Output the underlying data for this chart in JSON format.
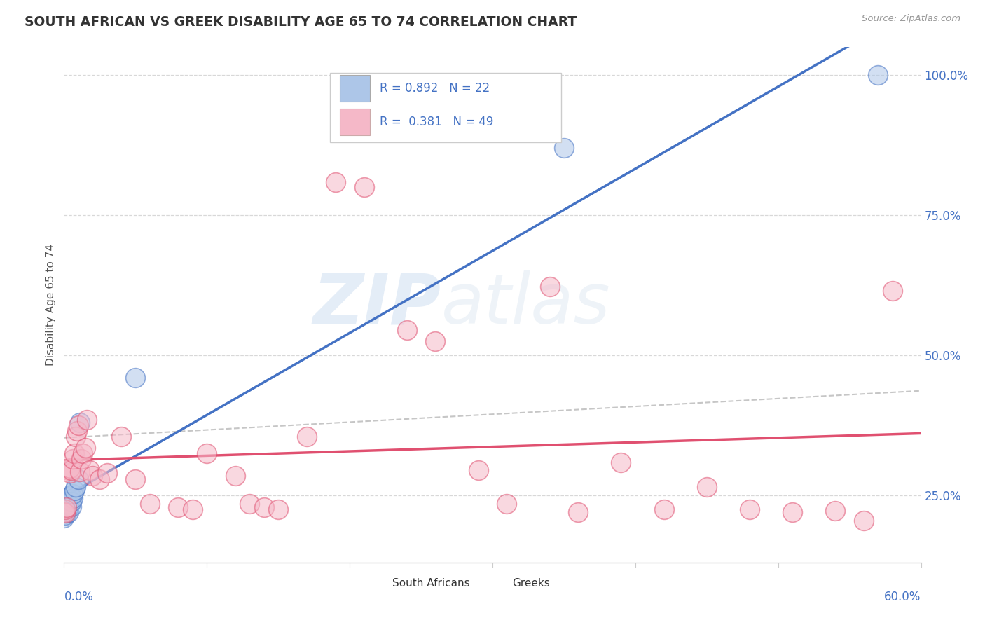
{
  "title": "SOUTH AFRICAN VS GREEK DISABILITY AGE 65 TO 74 CORRELATION CHART",
  "source": "Source: ZipAtlas.com",
  "ylabel": "Disability Age 65 to 74",
  "south_african_color": "#adc6e8",
  "greek_color": "#f5b8c8",
  "sa_line_color": "#4472c4",
  "greek_line_color": "#e05070",
  "greek_dash_color": "#b8b8b8",
  "xlim": [
    0.0,
    0.6
  ],
  "ylim": [
    0.13,
    1.05
  ],
  "sa_x": [
    0.0,
    0.001,
    0.001,
    0.002,
    0.002,
    0.002,
    0.003,
    0.003,
    0.003,
    0.004,
    0.004,
    0.005,
    0.005,
    0.006,
    0.006,
    0.007,
    0.008,
    0.01,
    0.011,
    0.05,
    0.35,
    0.57
  ],
  "sa_y": [
    0.21,
    0.215,
    0.22,
    0.218,
    0.225,
    0.232,
    0.22,
    0.228,
    0.235,
    0.242,
    0.248,
    0.23,
    0.238,
    0.245,
    0.252,
    0.258,
    0.265,
    0.278,
    0.38,
    0.46,
    0.87,
    1.0
  ],
  "gr_x": [
    0.0,
    0.001,
    0.001,
    0.002,
    0.003,
    0.004,
    0.004,
    0.005,
    0.006,
    0.007,
    0.008,
    0.009,
    0.01,
    0.011,
    0.012,
    0.013,
    0.015,
    0.016,
    0.018,
    0.02,
    0.025,
    0.03,
    0.04,
    0.05,
    0.06,
    0.08,
    0.09,
    0.1,
    0.12,
    0.13,
    0.14,
    0.15,
    0.17,
    0.19,
    0.21,
    0.24,
    0.26,
    0.29,
    0.31,
    0.34,
    0.36,
    0.39,
    0.42,
    0.45,
    0.48,
    0.51,
    0.54,
    0.56,
    0.58
  ],
  "gr_y": [
    0.22,
    0.218,
    0.225,
    0.228,
    0.295,
    0.29,
    0.298,
    0.295,
    0.315,
    0.325,
    0.355,
    0.365,
    0.375,
    0.292,
    0.315,
    0.325,
    0.335,
    0.385,
    0.295,
    0.285,
    0.278,
    0.29,
    0.355,
    0.278,
    0.235,
    0.228,
    0.225,
    0.325,
    0.285,
    0.235,
    0.228,
    0.225,
    0.355,
    0.808,
    0.8,
    0.545,
    0.525,
    0.295,
    0.235,
    0.622,
    0.22,
    0.308,
    0.225,
    0.265,
    0.225,
    0.22,
    0.222,
    0.205,
    0.615
  ],
  "background_color": "#ffffff",
  "grid_color": "#d8d8d8",
  "ytick_values": [
    0.25,
    0.5,
    0.75,
    1.0
  ],
  "xtick_values": [
    0.0,
    0.1,
    0.2,
    0.3,
    0.4,
    0.5,
    0.6
  ],
  "watermark_zip": "ZIP",
  "watermark_atlas": "atlas",
  "legend_r1": "R = 0.892",
  "legend_n1": "N = 22",
  "legend_r2": "R =  0.381",
  "legend_n2": "N = 49"
}
